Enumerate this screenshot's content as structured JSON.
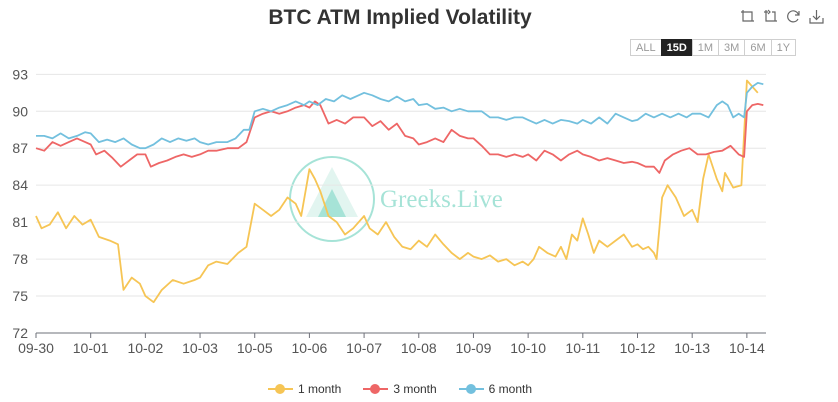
{
  "title": "BTC ATM Implied Volatility",
  "toolbox": [
    {
      "name": "zoom-icon"
    },
    {
      "name": "zoom-back-icon"
    },
    {
      "name": "restore-icon"
    },
    {
      "name": "save-image-icon"
    }
  ],
  "range_buttons": [
    "ALL",
    "15D",
    "1M",
    "3M",
    "6M",
    "1Y"
  ],
  "range_selected": "15D",
  "watermark_text": "Greeks.Live",
  "colors": {
    "one_month": "#f6c555",
    "three_month": "#ee6666",
    "six_month": "#73c0de",
    "grid": "#e6e6e6",
    "axis": "#6e7079"
  },
  "chart_data": {
    "type": "line",
    "title": "BTC ATM Implied Volatility",
    "x_ticks": [
      "09-30",
      "10-01",
      "10-02",
      "10-03",
      "10-05",
      "10-06",
      "10-07",
      "10-08",
      "10-09",
      "10-10",
      "10-11",
      "10-12",
      "10-13",
      "10-14"
    ],
    "y_ticks": [
      72,
      75,
      78,
      81,
      84,
      87,
      90,
      93
    ],
    "ylim": [
      72,
      94
    ],
    "grid": true,
    "legend_position": "bottom-center",
    "series": [
      {
        "name": "1 month",
        "color": "#f6c555",
        "points": [
          [
            0,
            81.5
          ],
          [
            0.1,
            80.5
          ],
          [
            0.25,
            80.8
          ],
          [
            0.4,
            81.8
          ],
          [
            0.55,
            80.5
          ],
          [
            0.7,
            81.5
          ],
          [
            0.85,
            80.8
          ],
          [
            1,
            81.2
          ],
          [
            1.15,
            79.8
          ],
          [
            1.35,
            79.5
          ],
          [
            1.5,
            79.2
          ],
          [
            1.6,
            75.5
          ],
          [
            1.75,
            76.5
          ],
          [
            1.9,
            76.0
          ],
          [
            2,
            75.0
          ],
          [
            2.15,
            74.5
          ],
          [
            2.3,
            75.5
          ],
          [
            2.5,
            76.3
          ],
          [
            2.7,
            76.0
          ],
          [
            2.9,
            76.3
          ],
          [
            3,
            76.5
          ],
          [
            3.15,
            77.5
          ],
          [
            3.3,
            77.8
          ],
          [
            3.5,
            77.6
          ],
          [
            3.7,
            78.5
          ],
          [
            3.85,
            79.0
          ],
          [
            4,
            82.5
          ],
          [
            4.15,
            82.0
          ],
          [
            4.3,
            81.5
          ],
          [
            4.45,
            82.0
          ],
          [
            4.6,
            83.0
          ],
          [
            4.75,
            82.5
          ],
          [
            4.85,
            81.5
          ],
          [
            5,
            85.3
          ],
          [
            5.1,
            84.5
          ],
          [
            5.2,
            83.5
          ],
          [
            5.35,
            81.5
          ],
          [
            5.5,
            81.0
          ],
          [
            5.65,
            80.0
          ],
          [
            5.8,
            80.5
          ],
          [
            6,
            81.5
          ],
          [
            6.1,
            80.5
          ],
          [
            6.25,
            80.0
          ],
          [
            6.4,
            81.0
          ],
          [
            6.55,
            79.8
          ],
          [
            6.7,
            79.0
          ],
          [
            6.85,
            78.8
          ],
          [
            7,
            79.5
          ],
          [
            7.15,
            79.0
          ],
          [
            7.3,
            80.0
          ],
          [
            7.45,
            79.2
          ],
          [
            7.6,
            78.5
          ],
          [
            7.75,
            78.0
          ],
          [
            7.9,
            78.5
          ],
          [
            8,
            78.2
          ],
          [
            8.15,
            78.0
          ],
          [
            8.3,
            78.3
          ],
          [
            8.45,
            77.8
          ],
          [
            8.6,
            78.0
          ],
          [
            8.75,
            77.5
          ],
          [
            8.9,
            77.8
          ],
          [
            9,
            77.5
          ],
          [
            9.1,
            78.0
          ],
          [
            9.2,
            79.0
          ],
          [
            9.35,
            78.5
          ],
          [
            9.5,
            78.2
          ],
          [
            9.6,
            79.0
          ],
          [
            9.7,
            78.0
          ],
          [
            9.8,
            80.0
          ],
          [
            9.9,
            79.5
          ],
          [
            10,
            81.3
          ],
          [
            10.1,
            80.0
          ],
          [
            10.2,
            78.5
          ],
          [
            10.3,
            79.5
          ],
          [
            10.45,
            79.0
          ],
          [
            10.6,
            79.5
          ],
          [
            10.75,
            80.0
          ],
          [
            10.9,
            79.0
          ],
          [
            11,
            79.2
          ],
          [
            11.1,
            78.8
          ],
          [
            11.2,
            79.0
          ],
          [
            11.3,
            78.5
          ],
          [
            11.35,
            78.0
          ],
          [
            11.4,
            80.5
          ],
          [
            11.45,
            83.0
          ],
          [
            11.55,
            84.0
          ],
          [
            11.7,
            83.0
          ],
          [
            11.85,
            81.5
          ],
          [
            12,
            82.0
          ],
          [
            12.1,
            81.0
          ],
          [
            12.2,
            84.5
          ],
          [
            12.3,
            86.5
          ],
          [
            12.45,
            84.5
          ],
          [
            12.55,
            83.5
          ],
          [
            12.6,
            85.0
          ],
          [
            12.75,
            83.8
          ],
          [
            12.9,
            84.0
          ],
          [
            13,
            92.5
          ],
          [
            13.1,
            92.0
          ],
          [
            13.2,
            91.5
          ]
        ]
      },
      {
        "name": "3 month",
        "color": "#ee6666",
        "points": [
          [
            0,
            87.0
          ],
          [
            0.15,
            86.8
          ],
          [
            0.3,
            87.5
          ],
          [
            0.45,
            87.2
          ],
          [
            0.6,
            87.5
          ],
          [
            0.75,
            87.8
          ],
          [
            0.9,
            87.5
          ],
          [
            1,
            87.3
          ],
          [
            1.1,
            86.5
          ],
          [
            1.25,
            86.8
          ],
          [
            1.4,
            86.2
          ],
          [
            1.55,
            85.5
          ],
          [
            1.7,
            86.0
          ],
          [
            1.85,
            86.5
          ],
          [
            2,
            86.5
          ],
          [
            2.1,
            85.5
          ],
          [
            2.25,
            85.8
          ],
          [
            2.4,
            86.0
          ],
          [
            2.55,
            86.3
          ],
          [
            2.7,
            86.5
          ],
          [
            2.85,
            86.3
          ],
          [
            3,
            86.5
          ],
          [
            3.15,
            86.8
          ],
          [
            3.3,
            86.8
          ],
          [
            3.5,
            87.0
          ],
          [
            3.7,
            87.0
          ],
          [
            3.85,
            87.5
          ],
          [
            4,
            89.5
          ],
          [
            4.15,
            89.8
          ],
          [
            4.3,
            90.0
          ],
          [
            4.45,
            89.8
          ],
          [
            4.6,
            90.0
          ],
          [
            4.75,
            90.3
          ],
          [
            4.9,
            90.5
          ],
          [
            5,
            90.3
          ],
          [
            5.1,
            90.8
          ],
          [
            5.2,
            90.5
          ],
          [
            5.35,
            89.0
          ],
          [
            5.5,
            89.3
          ],
          [
            5.65,
            89.0
          ],
          [
            5.8,
            89.5
          ],
          [
            6,
            89.5
          ],
          [
            6.15,
            88.8
          ],
          [
            6.3,
            89.2
          ],
          [
            6.45,
            88.5
          ],
          [
            6.6,
            89.0
          ],
          [
            6.75,
            88.0
          ],
          [
            6.9,
            87.8
          ],
          [
            7,
            87.3
          ],
          [
            7.15,
            87.5
          ],
          [
            7.3,
            87.8
          ],
          [
            7.45,
            87.5
          ],
          [
            7.6,
            88.5
          ],
          [
            7.75,
            88.0
          ],
          [
            7.9,
            87.8
          ],
          [
            8,
            87.8
          ],
          [
            8.15,
            87.2
          ],
          [
            8.3,
            86.5
          ],
          [
            8.45,
            86.5
          ],
          [
            8.6,
            86.3
          ],
          [
            8.75,
            86.5
          ],
          [
            8.9,
            86.3
          ],
          [
            9,
            86.5
          ],
          [
            9.15,
            86.0
          ],
          [
            9.3,
            86.8
          ],
          [
            9.45,
            86.5
          ],
          [
            9.6,
            86.0
          ],
          [
            9.75,
            86.5
          ],
          [
            9.9,
            86.8
          ],
          [
            10,
            86.5
          ],
          [
            10.15,
            86.3
          ],
          [
            10.3,
            86.0
          ],
          [
            10.45,
            86.2
          ],
          [
            10.6,
            86.0
          ],
          [
            10.75,
            85.8
          ],
          [
            10.9,
            85.9
          ],
          [
            11,
            85.8
          ],
          [
            11.15,
            85.5
          ],
          [
            11.3,
            85.5
          ],
          [
            11.4,
            85.0
          ],
          [
            11.5,
            86.0
          ],
          [
            11.65,
            86.5
          ],
          [
            11.8,
            86.8
          ],
          [
            11.95,
            87.0
          ],
          [
            12.1,
            86.5
          ],
          [
            12.25,
            86.5
          ],
          [
            12.4,
            86.7
          ],
          [
            12.55,
            86.8
          ],
          [
            12.7,
            87.2
          ],
          [
            12.85,
            86.5
          ],
          [
            12.95,
            86.3
          ],
          [
            13,
            90.0
          ],
          [
            13.1,
            90.5
          ],
          [
            13.2,
            90.6
          ],
          [
            13.3,
            90.5
          ]
        ]
      },
      {
        "name": "6 month",
        "color": "#73c0de",
        "points": [
          [
            0,
            88.0
          ],
          [
            0.15,
            88.0
          ],
          [
            0.3,
            87.8
          ],
          [
            0.45,
            88.2
          ],
          [
            0.6,
            87.8
          ],
          [
            0.75,
            88.0
          ],
          [
            0.9,
            88.3
          ],
          [
            1,
            88.2
          ],
          [
            1.15,
            87.5
          ],
          [
            1.3,
            87.7
          ],
          [
            1.45,
            87.5
          ],
          [
            1.6,
            87.8
          ],
          [
            1.75,
            87.3
          ],
          [
            1.9,
            87.0
          ],
          [
            2,
            87.0
          ],
          [
            2.15,
            87.3
          ],
          [
            2.3,
            87.8
          ],
          [
            2.45,
            87.5
          ],
          [
            2.6,
            87.8
          ],
          [
            2.75,
            87.6
          ],
          [
            2.9,
            87.8
          ],
          [
            3,
            87.5
          ],
          [
            3.15,
            87.3
          ],
          [
            3.3,
            87.5
          ],
          [
            3.5,
            87.5
          ],
          [
            3.65,
            87.8
          ],
          [
            3.8,
            88.5
          ],
          [
            3.9,
            88.5
          ],
          [
            4,
            90.0
          ],
          [
            4.15,
            90.2
          ],
          [
            4.3,
            90.0
          ],
          [
            4.45,
            90.3
          ],
          [
            4.6,
            90.5
          ],
          [
            4.75,
            90.8
          ],
          [
            4.9,
            90.5
          ],
          [
            5,
            90.8
          ],
          [
            5.15,
            90.5
          ],
          [
            5.3,
            91.0
          ],
          [
            5.45,
            90.8
          ],
          [
            5.6,
            91.3
          ],
          [
            5.75,
            91.0
          ],
          [
            5.9,
            91.3
          ],
          [
            6,
            91.5
          ],
          [
            6.15,
            91.3
          ],
          [
            6.3,
            91.0
          ],
          [
            6.45,
            90.8
          ],
          [
            6.6,
            91.2
          ],
          [
            6.75,
            90.8
          ],
          [
            6.9,
            91.0
          ],
          [
            7,
            90.5
          ],
          [
            7.15,
            90.6
          ],
          [
            7.3,
            90.2
          ],
          [
            7.45,
            90.3
          ],
          [
            7.6,
            90.0
          ],
          [
            7.75,
            90.2
          ],
          [
            7.9,
            90.0
          ],
          [
            8,
            90.0
          ],
          [
            8.15,
            90.0
          ],
          [
            8.3,
            89.5
          ],
          [
            8.45,
            89.5
          ],
          [
            8.6,
            89.3
          ],
          [
            8.75,
            89.5
          ],
          [
            8.9,
            89.5
          ],
          [
            9,
            89.3
          ],
          [
            9.15,
            89.0
          ],
          [
            9.3,
            89.3
          ],
          [
            9.45,
            89.0
          ],
          [
            9.6,
            89.3
          ],
          [
            9.75,
            89.2
          ],
          [
            9.9,
            89.0
          ],
          [
            10,
            89.3
          ],
          [
            10.15,
            89.0
          ],
          [
            10.3,
            89.5
          ],
          [
            10.45,
            89.0
          ],
          [
            10.6,
            89.8
          ],
          [
            10.75,
            89.5
          ],
          [
            10.9,
            89.2
          ],
          [
            11,
            89.3
          ],
          [
            11.15,
            89.8
          ],
          [
            11.3,
            89.5
          ],
          [
            11.45,
            89.8
          ],
          [
            11.6,
            89.5
          ],
          [
            11.75,
            89.8
          ],
          [
            11.9,
            89.5
          ],
          [
            12,
            89.8
          ],
          [
            12.15,
            89.8
          ],
          [
            12.3,
            89.5
          ],
          [
            12.45,
            90.5
          ],
          [
            12.55,
            90.8
          ],
          [
            12.65,
            90.5
          ],
          [
            12.75,
            89.5
          ],
          [
            12.85,
            89.8
          ],
          [
            12.95,
            89.5
          ],
          [
            13,
            91.5
          ],
          [
            13.1,
            92.0
          ],
          [
            13.2,
            92.3
          ],
          [
            13.3,
            92.2
          ]
        ]
      }
    ]
  }
}
